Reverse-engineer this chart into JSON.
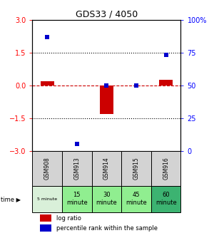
{
  "title": "GDS33 / 4050",
  "samples": [
    "GSM908",
    "GSM913",
    "GSM914",
    "GSM915",
    "GSM916"
  ],
  "time_labels": [
    "5 minute",
    "15\nminute",
    "30\nminute",
    "45\nminute",
    "60\nminute"
  ],
  "time_colors": [
    "#d9f0d9",
    "#90ee90",
    "#90ee90",
    "#90ee90",
    "#3cb371"
  ],
  "log_ratio": [
    0.18,
    0.0,
    -1.3,
    0.0,
    0.25
  ],
  "percentile_rank": [
    87,
    5,
    50,
    50,
    73
  ],
  "ylim_left": [
    -3,
    3
  ],
  "ylim_right": [
    0,
    100
  ],
  "bar_color": "#cc0000",
  "dot_color": "#0000cc",
  "dashed_color": "#cc0000",
  "yticks_left": [
    -3,
    -1.5,
    0,
    1.5,
    3
  ],
  "yticks_right": [
    0,
    25,
    50,
    75,
    100
  ],
  "bar_width": 0.45,
  "gsm_bg": "#d3d3d3",
  "legend_bar_label": "log ratio",
  "legend_dot_label": "percentile rank within the sample"
}
